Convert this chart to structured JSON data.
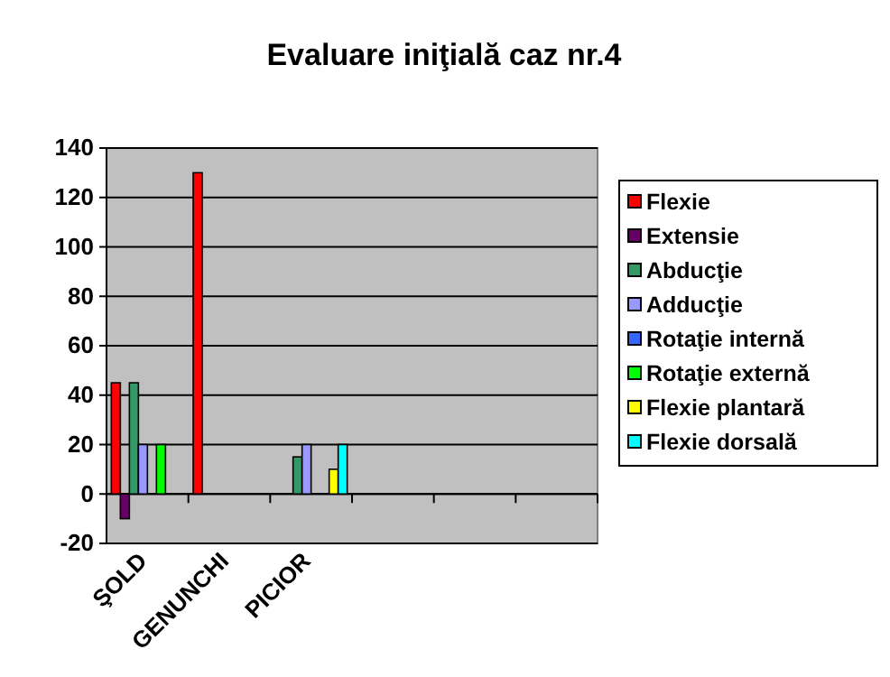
{
  "chart_data": {
    "type": "bar",
    "title": "Evaluare iniţială caz nr.4",
    "categories": [
      "ŞOLD",
      "GENUNCHI",
      "PICIOR",
      null,
      null,
      null
    ],
    "series": [
      {
        "name": "Flexie",
        "color": "#ff0000",
        "values": [
          45,
          130,
          null,
          null,
          null,
          null
        ]
      },
      {
        "name": "Extensie",
        "color": "#660066",
        "values": [
          -10,
          null,
          null,
          null,
          null,
          null
        ]
      },
      {
        "name": "Abducţie",
        "color": "#339966",
        "values": [
          45,
          null,
          15,
          null,
          null,
          null
        ]
      },
      {
        "name": "Adducţie",
        "color": "#9999ff",
        "values": [
          20,
          null,
          20,
          null,
          null,
          null
        ]
      },
      {
        "name": "Rotaţie internă",
        "color": "#3366ff",
        "values": [
          null,
          null,
          null,
          null,
          null,
          null
        ]
      },
      {
        "name": "Rotaţie externă",
        "color": "#00ff00",
        "values": [
          20,
          null,
          null,
          null,
          null,
          null
        ]
      },
      {
        "name": "Flexie plantară",
        "color": "#ffff00",
        "values": [
          null,
          null,
          10,
          null,
          null,
          null
        ]
      },
      {
        "name": "Flexie dorsală",
        "color": "#00ffff",
        "values": [
          null,
          null,
          20,
          null,
          null,
          null
        ]
      }
    ],
    "ylim": [
      -20,
      140
    ],
    "yticks": [
      -20,
      0,
      20,
      40,
      60,
      80,
      100,
      120,
      140
    ],
    "grid": "y",
    "legend": "right"
  }
}
